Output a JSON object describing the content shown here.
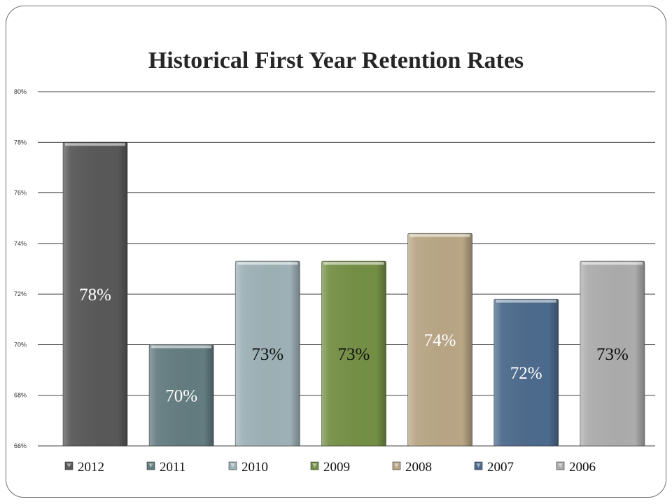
{
  "chart_data": {
    "type": "bar",
    "title": "Historical First Year Retention Rates",
    "xlabel": "",
    "ylabel": "",
    "ylim": [
      66,
      80
    ],
    "yticks": [
      "80%",
      "78%",
      "76%",
      "74%",
      "72%",
      "70%",
      "68%",
      "66%"
    ],
    "ytick_values": [
      80,
      78,
      76,
      74,
      72,
      70,
      68,
      66
    ],
    "grid": true,
    "legend_position": "bottom",
    "series": [
      {
        "name": "2012",
        "value": 78,
        "label": "78%",
        "color": "#585858",
        "label_color": "#ffffff"
      },
      {
        "name": "2011",
        "value": 70,
        "label": "70%",
        "color": "#637c80",
        "label_color": "#ffffff"
      },
      {
        "name": "2010",
        "value": 73.3,
        "label": "73%",
        "color": "#9db1b6",
        "label_color": "#111111"
      },
      {
        "name": "2009",
        "value": 73.3,
        "label": "73%",
        "color": "#748f45",
        "label_color": "#111111"
      },
      {
        "name": "2008",
        "value": 74.4,
        "label": "74%",
        "color": "#b8a685",
        "label_color": "#ffffff"
      },
      {
        "name": "2007",
        "value": 71.8,
        "label": "72%",
        "color": "#4c6a8c",
        "label_color": "#ffffff"
      },
      {
        "name": "2006",
        "value": 73.3,
        "label": "73%",
        "color": "#acacac",
        "label_color": "#111111"
      }
    ]
  }
}
